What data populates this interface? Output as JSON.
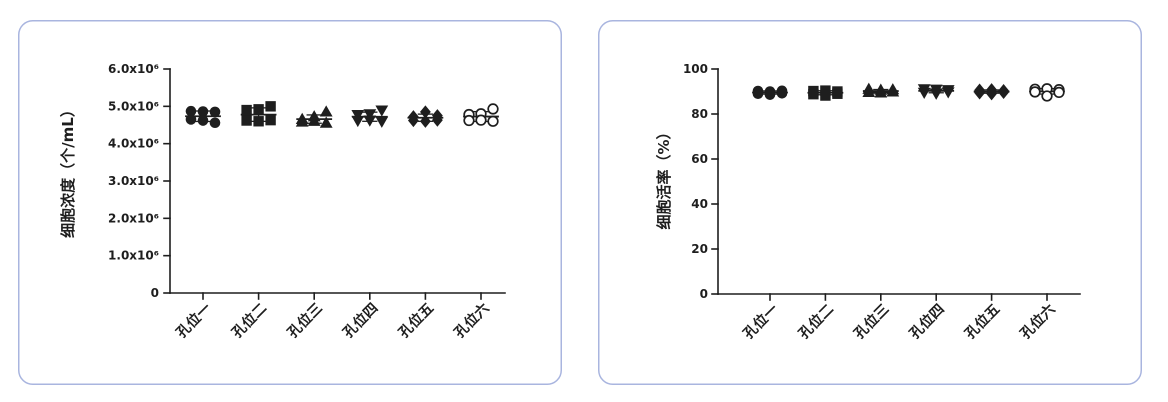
{
  "style": {
    "ink": "#1e1e1e",
    "panel_border": "#a9b5df",
    "panel_fill": "#ffffff"
  },
  "chart_data": [
    {
      "type": "scatter",
      "ylabel": "细胞浓度（个/mL）",
      "categories": [
        "孔位一",
        "孔位二",
        "孔位三",
        "孔位四",
        "孔位五",
        "孔位六"
      ],
      "markers": [
        "filled-circle",
        "filled-square",
        "filled-triangle-up",
        "filled-triangle-down",
        "filled-diamond",
        "open-circle"
      ],
      "values": [
        [
          4870000,
          4860000,
          4850000,
          4650000,
          4620000,
          4560000
        ],
        [
          4900000,
          4920000,
          5000000,
          4620000,
          4600000,
          4630000
        ],
        [
          4650000,
          4720000,
          4850000,
          4580000,
          4600000,
          4550000
        ],
        [
          4780000,
          4800000,
          4900000,
          4620000,
          4630000,
          4600000
        ],
        [
          4720000,
          4850000,
          4750000,
          4620000,
          4600000,
          4630000
        ],
        [
          4780000,
          4800000,
          4930000,
          4620000,
          4630000,
          4600000
        ]
      ],
      "mean_sd": true,
      "ylim": [
        0,
        6000000
      ],
      "yticks": [
        0,
        1000000,
        2000000,
        3000000,
        4000000,
        5000000,
        6000000
      ],
      "ytick_labels": [
        "0",
        "1.0x10⁶",
        "2.0x10⁶",
        "3.0x10⁶",
        "4.0x10⁶",
        "5.0x10⁶",
        "6.0x10⁶"
      ],
      "grid": false,
      "legend": "none"
    },
    {
      "type": "scatter",
      "ylabel": "细胞活率（%）",
      "categories": [
        "孔位一",
        "孔位二",
        "孔位三",
        "孔位四",
        "孔位五",
        "孔位六"
      ],
      "markers": [
        "filled-circle",
        "filled-square",
        "filled-triangle-up",
        "filled-triangle-down",
        "filled-diamond",
        "open-circle"
      ],
      "values": [
        [
          90.2,
          90.0,
          90.3,
          89.0,
          88.6,
          89.2
        ],
        [
          90.2,
          90.4,
          90.0,
          88.8,
          88.2,
          89.0
        ],
        [
          91.0,
          90.6,
          90.8,
          89.6,
          89.4,
          89.8
        ],
        [
          91.2,
          91.0,
          90.8,
          89.6,
          89.2,
          89.8
        ],
        [
          90.6,
          90.8,
          90.4,
          89.4,
          89.0,
          89.6
        ],
        [
          91.0,
          91.2,
          90.8,
          89.8,
          88.0,
          89.6
        ]
      ],
      "mean_sd": true,
      "ylim": [
        0,
        100
      ],
      "yticks": [
        0,
        20,
        40,
        60,
        80,
        100
      ],
      "ytick_labels": [
        "0",
        "20",
        "40",
        "60",
        "80",
        "100"
      ],
      "grid": false,
      "legend": "none"
    }
  ]
}
